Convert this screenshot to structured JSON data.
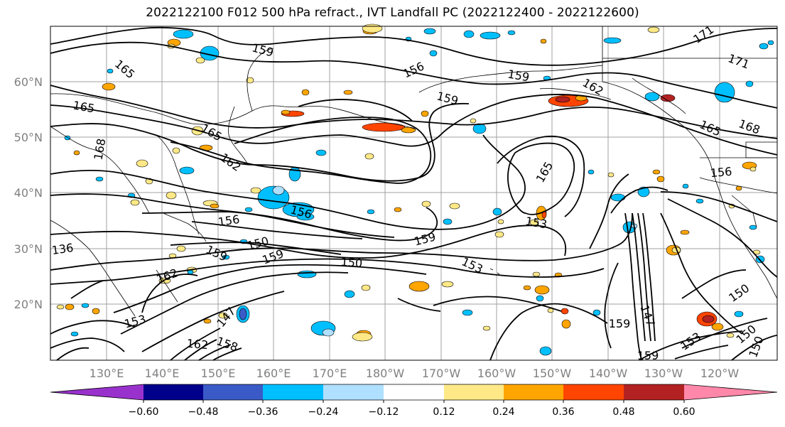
{
  "title": "2022122100 F012 500 hPa refract., IVT Landfall PC (2022122400 - 2022122600)",
  "lat_labels": [
    "60°N",
    "50°N",
    "40°N",
    "30°N",
    "20°N"
  ],
  "lon_labels": [
    "130°E",
    "140°E",
    "150°E",
    "160°E",
    "170°E",
    "180°W",
    "170°W",
    "160°W",
    "150°W",
    "140°W",
    "130°W",
    "120°W"
  ],
  "colorbar": {
    "colors": [
      "#9932CC",
      "#00008B",
      "#3A5BC7",
      "#00BFFF",
      "#B0E0FF",
      "#FFFFFF",
      "#FFE987",
      "#FFA500",
      "#FF4500",
      "#B22222",
      "#FF88AA"
    ],
    "tick_labels": [
      "−0.60",
      "−0.48",
      "−0.36",
      "−0.24",
      "−0.12",
      "0.12",
      "0.24",
      "0.36",
      "0.48",
      "0.60"
    ]
  },
  "contour_labels": [
    "159",
    "165",
    "165",
    "156",
    "159",
    "162",
    "171",
    "171",
    "159",
    "165",
    "168",
    "168",
    "165",
    "156",
    "162",
    "156",
    "165",
    "156",
    "153",
    "159",
    "136",
    "150",
    "159",
    "159",
    "150",
    "153",
    "162",
    "150",
    "147",
    "153",
    "147",
    "159",
    "162",
    "158",
    "150",
    "153",
    "150",
    "159"
  ],
  "colors": {
    "grid": "#a0a0a0",
    "axis_label": "#808080",
    "contour": "#000000"
  }
}
